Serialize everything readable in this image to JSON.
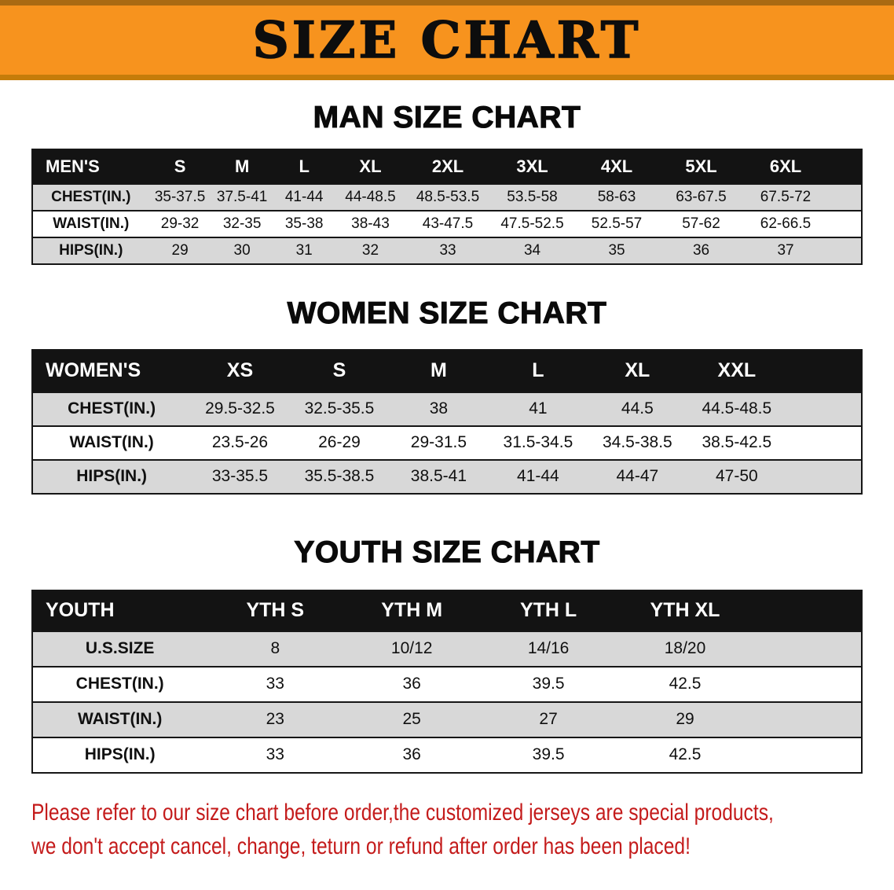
{
  "banner": {
    "title": "SIZE CHART"
  },
  "men": {
    "heading": "MAN SIZE CHART",
    "header": [
      "MEN'S",
      "S",
      "M",
      "L",
      "XL",
      "2XL",
      "3XL",
      "4XL",
      "5XL",
      "6XL"
    ],
    "rows": [
      [
        "CHEST(IN.)",
        "35-37.5",
        "37.5-41",
        "41-44",
        "44-48.5",
        "48.5-53.5",
        "53.5-58",
        "58-63",
        "63-67.5",
        "67.5-72"
      ],
      [
        "WAIST(IN.)",
        "29-32",
        "32-35",
        "35-38",
        "38-43",
        "43-47.5",
        "47.5-52.5",
        "52.5-57",
        "57-62",
        "62-66.5"
      ],
      [
        "HIPS(IN.)",
        "29",
        "30",
        "31",
        "32",
        "33",
        "34",
        "35",
        "36",
        "37"
      ]
    ]
  },
  "women": {
    "heading": "WOMEN SIZE CHART",
    "header": [
      "WOMEN'S",
      "XS",
      "S",
      "M",
      "L",
      "XL",
      "XXL"
    ],
    "rows": [
      [
        "CHEST(IN.)",
        "29.5-32.5",
        "32.5-35.5",
        "38",
        "41",
        "44.5",
        "44.5-48.5"
      ],
      [
        "WAIST(IN.)",
        "23.5-26",
        "26-29",
        "29-31.5",
        "31.5-34.5",
        "34.5-38.5",
        "38.5-42.5"
      ],
      [
        "HIPS(IN.)",
        "33-35.5",
        "35.5-38.5",
        "38.5-41",
        "41-44",
        "44-47",
        "47-50"
      ]
    ]
  },
  "youth": {
    "heading": "YOUTH SIZE CHART",
    "header": [
      "YOUTH",
      "YTH S",
      "YTH M",
      "YTH L",
      "YTH XL"
    ],
    "rows": [
      [
        "U.S.SIZE",
        "8",
        "10/12",
        "14/16",
        "18/20"
      ],
      [
        "CHEST(IN.)",
        "33",
        "36",
        "39.5",
        "42.5"
      ],
      [
        "WAIST(IN.)",
        "23",
        "25",
        "27",
        "29"
      ],
      [
        "HIPS(IN.)",
        "33",
        "36",
        "39.5",
        "42.5"
      ]
    ]
  },
  "footer": {
    "line1": "Please refer to our size chart before order,the customized jerseys are special products,",
    "line2": "we don't accept cancel, change, teturn or refund after order has been placed!"
  },
  "colors": {
    "banner_orange": "#f7931e",
    "banner_edge": "#aa6a12",
    "table_header_black": "#131313",
    "row_gray": "#d8d8d8",
    "disclaimer_red": "#c41b1b"
  }
}
